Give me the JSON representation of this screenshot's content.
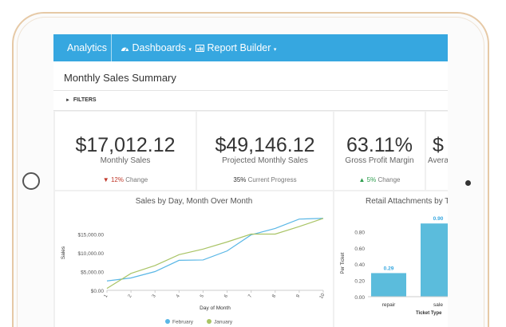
{
  "nav": {
    "brand": "Analytics",
    "dashboards": "Dashboards",
    "report_builder": "Report Builder"
  },
  "page": {
    "title": "Monthly Sales Summary",
    "filters_label": "FILTERS"
  },
  "metrics": [
    {
      "value": "$17,012.12",
      "label": "Monthly Sales",
      "change_value": "12%",
      "change_label": "Change",
      "direction": "down"
    },
    {
      "value": "$49,146.12",
      "label": "Projected Monthly Sales",
      "change_value": "35%",
      "change_label": "Current Progress",
      "direction": "none"
    },
    {
      "value": "63.11%",
      "label": "Gross Profit Margin",
      "change_value": "5%",
      "change_label": "Change",
      "direction": "up"
    },
    {
      "value": "$",
      "label": "Avera",
      "change_value": "",
      "change_label": "",
      "direction": "none"
    }
  ],
  "colors": {
    "nav": "#36a7e0",
    "down": "#c0392b",
    "up": "#2e9e4f",
    "february": "#5ab7e6",
    "january": "#a9c466",
    "bar": "#5bbcdc"
  },
  "chart_data": [
    {
      "type": "line",
      "title": "Sales by Day, Month Over Month",
      "xlabel": "Day of Month",
      "ylabel": "Sales",
      "x": [
        1,
        2,
        3,
        4,
        5,
        6,
        7,
        8,
        9,
        10
      ],
      "x_tick_labels": [
        "1",
        "2",
        "3",
        "4",
        "5",
        "6",
        "7",
        "8",
        "9",
        "10"
      ],
      "ylim": [
        0,
        20000
      ],
      "y_ticks": [
        0,
        5000,
        10000,
        15000
      ],
      "y_tick_labels": [
        "$0.00",
        "$5,000.00",
        "$10,000.00",
        "$15,000.00"
      ],
      "legend_position": "bottom",
      "series": [
        {
          "name": "February",
          "values": [
            2500,
            3300,
            5000,
            8000,
            8100,
            10500,
            14800,
            16500,
            19000,
            19200
          ]
        },
        {
          "name": "January",
          "values": [
            500,
            4500,
            6600,
            9500,
            11000,
            12900,
            15000,
            15000,
            17000,
            19200
          ]
        }
      ]
    },
    {
      "type": "bar",
      "title": "Retail Attachments by T",
      "xlabel": "Ticket Type",
      "ylabel": "Per Ticket",
      "categories": [
        "repair",
        "sale"
      ],
      "values": [
        0.29,
        0.9
      ],
      "data_labels": [
        "0.29",
        "0.90"
      ],
      "ylim": [
        0,
        1.0
      ],
      "y_ticks": [
        0,
        0.2,
        0.4,
        0.6,
        0.8
      ],
      "y_tick_labels": [
        "0.00",
        "0.20",
        "0.40",
        "0.60",
        "0.80"
      ]
    }
  ]
}
